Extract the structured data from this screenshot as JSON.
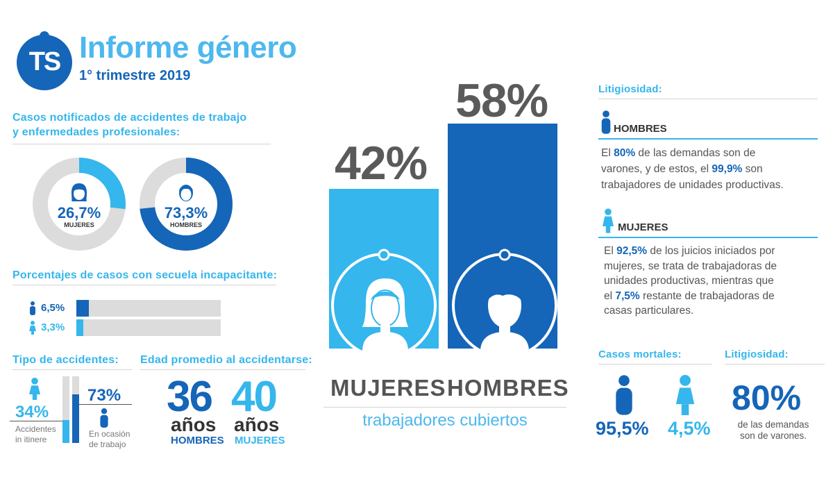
{
  "header": {
    "logo": "TS",
    "title": "Informe género",
    "subtitle": "1° trimestre 2019"
  },
  "casos": {
    "title_line1": "Casos notificados de accidentes de trabajo",
    "title_line2": "y enfermedades profesionales:",
    "mujeres": {
      "value": "26,7%",
      "label": "MUJERES",
      "fraction": 0.267
    },
    "hombres": {
      "value": "73,3%",
      "label": "HOMBRES",
      "fraction": 0.733
    }
  },
  "secuela": {
    "title": "Porcentajes de casos con secuela incapacitante:",
    "rows": [
      {
        "value": "6,5%",
        "icon": "male-person-icon",
        "fraction": 0.065
      },
      {
        "value": "3,3%",
        "icon": "female-person-icon",
        "fraction": 0.033
      }
    ]
  },
  "tipo": {
    "title": "Tipo de accidentes:",
    "itinere": {
      "value": "34%",
      "label_line1": "Accidentes",
      "label_line2": "in itinere",
      "fraction": 0.34
    },
    "ocasion": {
      "value": "73%",
      "label_line1": "En ocasión",
      "label_line2": "de trabajo",
      "fraction": 0.73
    }
  },
  "edad": {
    "title": "Edad promedio al accidentarse:",
    "hombres": {
      "number": "36",
      "unit": "años",
      "label": "HOMBRES"
    },
    "mujeres": {
      "number": "40",
      "unit": "años",
      "label": "MUJERES"
    }
  },
  "center": {
    "mujeres": {
      "value": "42%",
      "label": "MUJERES",
      "fraction": 0.42
    },
    "hombres": {
      "value": "58%",
      "label": "HOMBRES",
      "fraction": 0.58
    },
    "caption": "trabajadores cubiertos"
  },
  "litigiosidad": {
    "title": "Litigiosidad:",
    "hombres": {
      "label": "HOMBRES",
      "t1": "El ",
      "b1": "80%",
      "t2": " de las demandas son de",
      "t3": "varones, y de estos, el ",
      "b2": "99,9%",
      "t4": " son",
      "t5": "trabajadores de unidades productivas."
    },
    "mujeres": {
      "label": "MUJERES",
      "t1": "El ",
      "b1": "92,5%",
      "t2": " de los juicios iniciados por",
      "t3": "mujeres, se trata de trabajadoras de",
      "t4": "unidades productivas, mientras que",
      "t5": "el ",
      "b2": "7,5%",
      "t6": " restante de trabajadoras de",
      "t7": "casas particulares."
    }
  },
  "mortales": {
    "title": "Casos mortales:",
    "hombres": "95,5%",
    "mujeres": "4,5%"
  },
  "litig2": {
    "title": "Litigiosidad:",
    "value": "80%",
    "line1": "de las demandas",
    "line2": "son de varones."
  },
  "colors": {
    "light": "#35b6ec",
    "dark": "#1565b8",
    "gray": "#dcdcdc"
  }
}
